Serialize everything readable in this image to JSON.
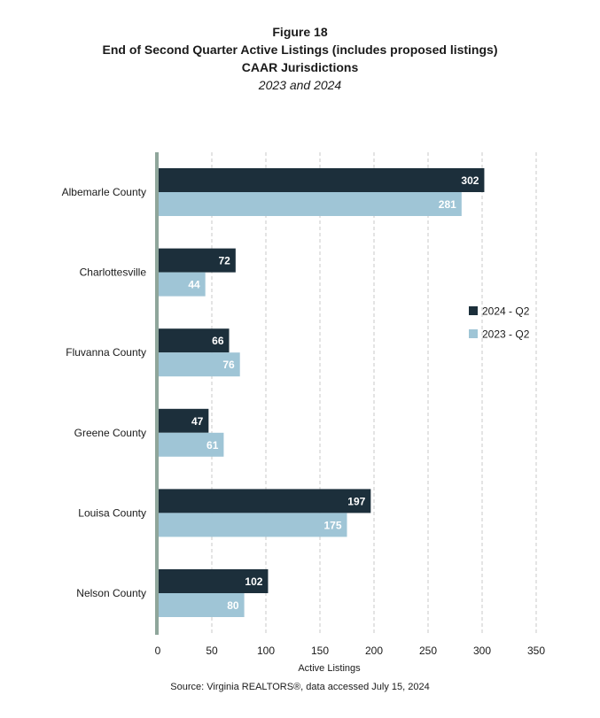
{
  "titles": {
    "figure": "Figure 18",
    "main": "End of Second Quarter Active Listings (includes proposed listings)",
    "sub": "CAAR Jurisdictions",
    "years": "2023 and 2024"
  },
  "source": "Source: Virginia REALTORS®, data accessed July 15, 2024",
  "chart_data": {
    "type": "bar",
    "orientation": "horizontal",
    "categories": [
      "Albemarle County",
      "Charlottesville",
      "Fluvanna County",
      "Greene County",
      "Louisa County",
      "Nelson County"
    ],
    "series": [
      {
        "name": "2024 - Q2",
        "color": "#1c2f3b",
        "values": [
          302,
          72,
          66,
          47,
          197,
          102
        ]
      },
      {
        "name": "2023 - Q2",
        "color": "#9fc5d6",
        "values": [
          281,
          44,
          76,
          61,
          175,
          80
        ]
      }
    ],
    "xlabel": "Active Listings",
    "xlim": [
      0,
      350
    ],
    "xticks": [
      0,
      50,
      100,
      150,
      200,
      250,
      300,
      350
    ],
    "grid": "vertical dashed",
    "legend": "right"
  }
}
